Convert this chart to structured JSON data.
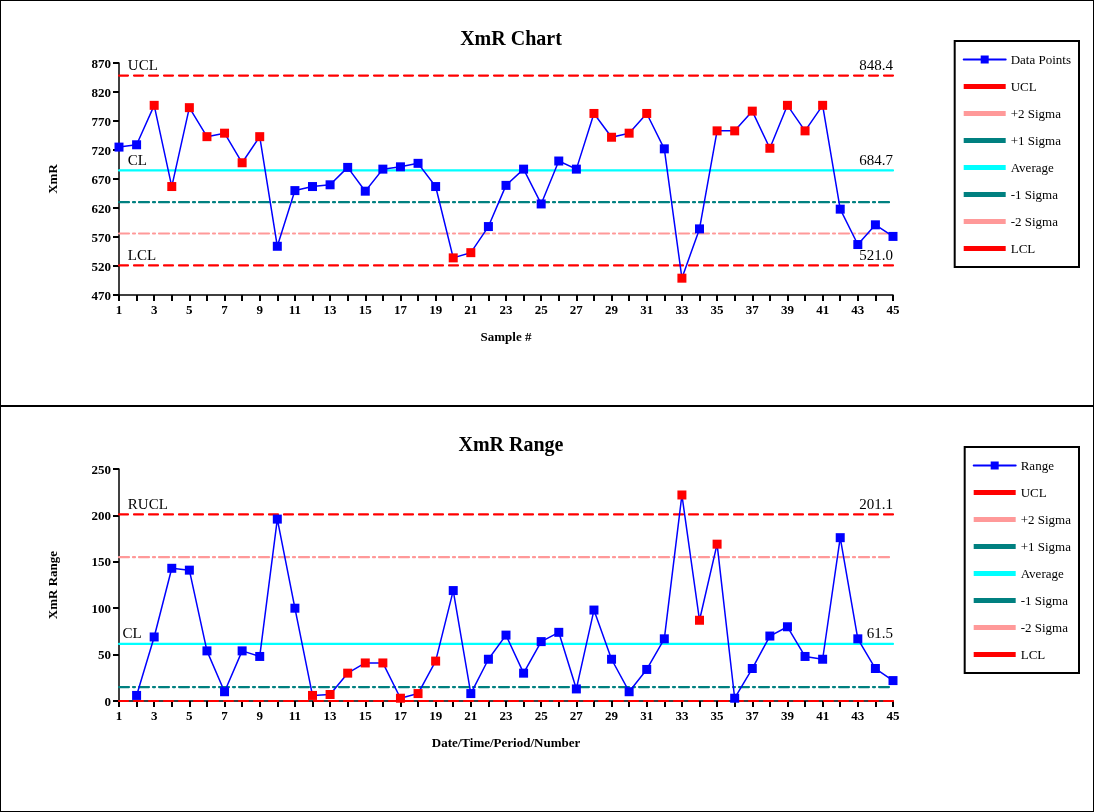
{
  "chart_data": [
    {
      "type": "line",
      "title": "XmR Chart",
      "xlabel": "Sample #",
      "ylabel": "XmR",
      "xlim": [
        1,
        45
      ],
      "xticks": [
        1,
        {
          "value": 2,
          "label": null
        },
        3,
        {
          "value": 4,
          "label": null
        },
        5,
        {
          "value": 6,
          "label": null
        },
        7,
        {
          "value": 8,
          "label": null
        },
        9,
        {
          "value": 10,
          "label": null
        },
        11,
        {
          "value": 12,
          "label": null
        },
        13,
        {
          "value": 14,
          "label": null
        },
        15,
        {
          "value": 16,
          "label": null
        },
        17,
        {
          "value": 18,
          "label": null
        },
        19,
        {
          "value": 20,
          "label": null
        },
        21,
        {
          "value": 22,
          "label": null
        },
        23,
        {
          "value": 24,
          "label": null
        },
        25,
        {
          "value": 26,
          "label": null
        },
        27,
        {
          "value": 28,
          "label": null
        },
        29,
        {
          "value": 30,
          "label": null
        },
        31,
        {
          "value": 32,
          "label": null
        },
        33,
        {
          "value": 34,
          "label": null
        },
        35,
        {
          "value": 36,
          "label": null
        },
        37,
        {
          "value": 38,
          "label": null
        },
        39,
        {
          "value": 40,
          "label": null
        },
        41,
        {
          "value": 42,
          "label": null
        },
        43,
        {
          "value": 44,
          "label": null
        },
        45
      ],
      "ylim": [
        470,
        870
      ],
      "yticks": [
        470,
        520,
        570,
        620,
        670,
        720,
        770,
        820,
        870
      ],
      "grid": false,
      "legend": "right",
      "marker": "square",
      "series": [
        {
          "name": "Data Points",
          "color": "#0000ff",
          "line_style": "solid",
          "x": [
            1,
            2,
            3,
            4,
            5,
            6,
            7,
            8,
            9,
            10,
            11,
            12,
            13,
            14,
            15,
            16,
            17,
            18,
            19,
            20,
            21,
            22,
            23,
            24,
            25,
            26,
            27,
            28,
            29,
            30,
            31,
            32,
            33,
            34,
            35,
            36,
            37,
            38,
            39,
            40,
            41,
            42,
            43,
            44,
            45
          ],
          "values": [
            725,
            729,
            797,
            657,
            793,
            743,
            749,
            698,
            743,
            554,
            650,
            657,
            660,
            690,
            649,
            687,
            691,
            697,
            657,
            534,
            543,
            588,
            659,
            687,
            627,
            701,
            687,
            783,
            742,
            749,
            783,
            722,
            499,
            584,
            753,
            753,
            787,
            723,
            797,
            753,
            797,
            618,
            557,
            591,
            571
          ],
          "colors": [
            "#0000ff",
            "#0000ff",
            "#ff0000",
            "#ff0000",
            "#ff0000",
            "#ff0000",
            "#ff0000",
            "#ff0000",
            "#ff0000",
            "#0000ff",
            "#0000ff",
            "#0000ff",
            "#0000ff",
            "#0000ff",
            "#0000ff",
            "#0000ff",
            "#0000ff",
            "#0000ff",
            "#0000ff",
            "#ff0000",
            "#ff0000",
            "#0000ff",
            "#0000ff",
            "#0000ff",
            "#0000ff",
            "#0000ff",
            "#0000ff",
            "#ff0000",
            "#ff0000",
            "#ff0000",
            "#ff0000",
            "#0000ff",
            "#ff0000",
            "#0000ff",
            "#ff0000",
            "#ff0000",
            "#ff0000",
            "#ff0000",
            "#ff0000",
            "#ff0000",
            "#ff0000",
            "#0000ff",
            "#0000ff",
            "#0000ff",
            "#0000ff"
          ]
        },
        {
          "name": "UCL",
          "color": "#ff0000",
          "line_style": "dashed",
          "marker": "none",
          "x": [
            1,
            45
          ],
          "values": [
            848.4,
            848.4
          ]
        },
        {
          "name": "+2 Sigma",
          "color": "#ff9999",
          "line_style": "dashdot",
          "marker": "none"
        },
        {
          "name": "+1 Sigma",
          "color": "#008080",
          "line_style": "dashdot",
          "marker": "none"
        },
        {
          "name": "Average",
          "color": "#00ffff",
          "line_style": "solid",
          "marker": "none",
          "x": [
            1,
            45
          ],
          "values": [
            684.7,
            684.7
          ]
        },
        {
          "name": "-1 Sigma",
          "color": "#008080",
          "line_style": "dashdot",
          "marker": "none",
          "x": [
            1,
            45
          ],
          "values": [
            630,
            630
          ]
        },
        {
          "name": "-2 Sigma",
          "color": "#ff9999",
          "line_style": "dashdot",
          "marker": "none",
          "x": [
            1,
            45
          ],
          "values": [
            576,
            576
          ]
        },
        {
          "name": "LCL",
          "color": "#ff0000",
          "line_style": "dashed",
          "marker": "none",
          "x": [
            1,
            45
          ],
          "values": [
            521.0,
            521.0
          ]
        }
      ],
      "annotations": [
        {
          "text": "UCL",
          "x": 1.5,
          "y": 848.4
        },
        {
          "text": "CL",
          "x": 1.5,
          "y": 684.7
        },
        {
          "text": "LCL",
          "x": 1.5,
          "y": 521.0
        },
        {
          "text": "848.4",
          "x": 45,
          "y": 848.4
        },
        {
          "text": "684.7",
          "x": 45,
          "y": 684.7
        },
        {
          "text": "521.0",
          "x": 45,
          "y": 521.0
        }
      ]
    },
    {
      "type": "line",
      "title": "XmR Range",
      "xlabel": "Date/Time/Period/Number",
      "ylabel": "XmR Range",
      "xlim": [
        1,
        45
      ],
      "xticks": [
        1,
        {
          "value": 2,
          "label": null
        },
        3,
        {
          "value": 4,
          "label": null
        },
        5,
        {
          "value": 6,
          "label": null
        },
        7,
        {
          "value": 8,
          "label": null
        },
        9,
        {
          "value": 10,
          "label": null
        },
        11,
        {
          "value": 12,
          "label": null
        },
        13,
        {
          "value": 14,
          "label": null
        },
        15,
        {
          "value": 16,
          "label": null
        },
        17,
        {
          "value": 18,
          "label": null
        },
        19,
        {
          "value": 20,
          "label": null
        },
        21,
        {
          "value": 22,
          "label": null
        },
        23,
        {
          "value": 24,
          "label": null
        },
        25,
        {
          "value": 26,
          "label": null
        },
        27,
        {
          "value": 28,
          "label": null
        },
        29,
        {
          "value": 30,
          "label": null
        },
        31,
        {
          "value": 32,
          "label": null
        },
        33,
        {
          "value": 34,
          "label": null
        },
        35,
        {
          "value": 36,
          "label": null
        },
        37,
        {
          "value": 38,
          "label": null
        },
        39,
        {
          "value": 40,
          "label": null
        },
        41,
        {
          "value": 42,
          "label": null
        },
        43,
        {
          "value": 44,
          "label": null
        },
        45
      ],
      "ylim": [
        0,
        250
      ],
      "yticks": [
        0,
        50,
        100,
        150,
        200,
        250
      ],
      "grid": false,
      "legend": "right",
      "marker": "square",
      "series": [
        {
          "name": "Range",
          "color": "#0000ff",
          "line_style": "solid",
          "x": [
            2,
            3,
            4,
            5,
            6,
            7,
            8,
            9,
            10,
            11,
            12,
            13,
            14,
            15,
            16,
            17,
            18,
            19,
            20,
            21,
            22,
            23,
            24,
            25,
            26,
            27,
            28,
            29,
            30,
            31,
            32,
            33,
            34,
            35,
            36,
            37,
            38,
            39,
            40,
            41,
            42,
            43,
            44,
            45
          ],
          "values": [
            6,
            69,
            143,
            141,
            54,
            10,
            54,
            48,
            196,
            100,
            6,
            7,
            30,
            41,
            41,
            3,
            8,
            43,
            119,
            8,
            45,
            71,
            30,
            64,
            74,
            13,
            98,
            45,
            10,
            34,
            67,
            222,
            87,
            169,
            3,
            35,
            70,
            80,
            48,
            45,
            176,
            67,
            35,
            22
          ],
          "colors": [
            "#0000ff",
            "#0000ff",
            "#0000ff",
            "#0000ff",
            "#0000ff",
            "#0000ff",
            "#0000ff",
            "#0000ff",
            "#0000ff",
            "#0000ff",
            "#ff0000",
            "#ff0000",
            "#ff0000",
            "#ff0000",
            "#ff0000",
            "#ff0000",
            "#ff0000",
            "#ff0000",
            "#0000ff",
            "#0000ff",
            "#0000ff",
            "#0000ff",
            "#0000ff",
            "#0000ff",
            "#0000ff",
            "#0000ff",
            "#0000ff",
            "#0000ff",
            "#0000ff",
            "#0000ff",
            "#0000ff",
            "#ff0000",
            "#ff0000",
            "#ff0000",
            "#0000ff",
            "#0000ff",
            "#0000ff",
            "#0000ff",
            "#0000ff",
            "#0000ff",
            "#0000ff",
            "#0000ff",
            "#0000ff",
            "#0000ff"
          ]
        },
        {
          "name": "UCL",
          "color": "#ff0000",
          "line_style": "dashed",
          "marker": "none",
          "x": [
            1,
            45
          ],
          "values": [
            201.1,
            201.1
          ]
        },
        {
          "name": "+2 Sigma",
          "color": "#ff9999",
          "line_style": "dashdot",
          "marker": "none",
          "x": [
            1,
            45
          ],
          "values": [
            155,
            155
          ]
        },
        {
          "name": "+1 Sigma",
          "color": "#008080",
          "line_style": "dashdot",
          "marker": "none"
        },
        {
          "name": "Average",
          "color": "#00ffff",
          "line_style": "solid",
          "marker": "none",
          "x": [
            1,
            45
          ],
          "values": [
            61.5,
            61.5
          ]
        },
        {
          "name": "-1 Sigma",
          "color": "#008080",
          "line_style": "dashdot",
          "marker": "none",
          "x": [
            1,
            45
          ],
          "values": [
            15,
            15
          ]
        },
        {
          "name": "-2 Sigma",
          "color": "#ff9999",
          "line_style": "dashdot",
          "marker": "none"
        },
        {
          "name": "LCL",
          "color": "#ff0000",
          "line_style": "dashed",
          "marker": "none",
          "x": [
            1,
            45
          ],
          "values": [
            0,
            0
          ]
        }
      ],
      "annotations": [
        {
          "text": "RUCL",
          "x": 1.5,
          "y": 201.1
        },
        {
          "text": "CL",
          "x": 1.2,
          "y": 61.5
        },
        {
          "text": "201.1",
          "x": 45,
          "y": 201.1
        },
        {
          "text": "61.5",
          "x": 45,
          "y": 61.5
        }
      ]
    }
  ]
}
